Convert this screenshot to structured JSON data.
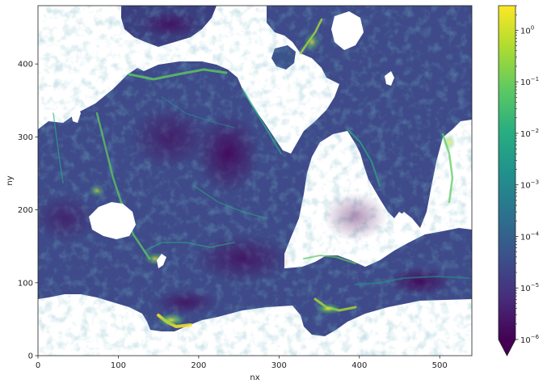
{
  "chart_data": {
    "type": "heatmap",
    "title": "",
    "xlabel": "nx",
    "ylabel": "ny",
    "xlim": [
      0,
      540
    ],
    "ylim": [
      0,
      480
    ],
    "x_ticks": [
      0,
      100,
      200,
      300,
      400,
      500
    ],
    "y_ticks": [
      0,
      100,
      200,
      300,
      400
    ],
    "colorbar": {
      "scale": "log",
      "range": [
        1e-06,
        3
      ],
      "extend": "min",
      "colormap": "viridis",
      "ticks": [
        {
          "value": 1e-06,
          "base": "10",
          "exp": "−6"
        },
        {
          "value": 1e-05,
          "base": "10",
          "exp": "−5"
        },
        {
          "value": 0.0001,
          "base": "10",
          "exp": "−4"
        },
        {
          "value": 0.001,
          "base": "10",
          "exp": "−3"
        },
        {
          "value": 0.01,
          "base": "10",
          "exp": "−2"
        },
        {
          "value": 0.1,
          "base": "10",
          "exp": "−1"
        },
        {
          "value": 1,
          "base": "10",
          "exp": "0"
        }
      ]
    },
    "grid": false
  }
}
